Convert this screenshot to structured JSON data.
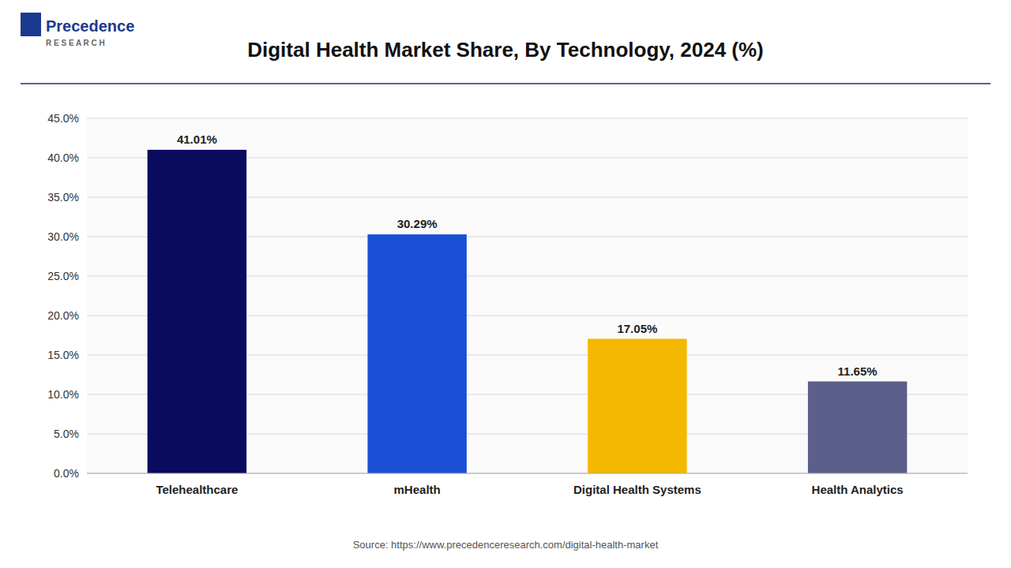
{
  "chart_data": {
    "type": "bar",
    "title": "Digital Health Market Share, By Technology, 2024 (%)",
    "categories": [
      "Telehealthcare",
      "mHealth",
      "Digital Health Systems",
      "Health Analytics"
    ],
    "values": [
      41.01,
      30.29,
      17.05,
      11.65
    ],
    "value_labels": [
      "41.01%",
      "30.29%",
      "17.05%",
      "11.65%"
    ],
    "colors": [
      "#0a0a5e",
      "#1a4fd6",
      "#f5b800",
      "#5b5f8a"
    ],
    "ylim": [
      0,
      45
    ],
    "yticks": [
      {
        "value": 0,
        "label": "0.0%"
      },
      {
        "value": 5,
        "label": "5.0%"
      },
      {
        "value": 10,
        "label": "10.0%"
      },
      {
        "value": 15,
        "label": "15.0%"
      },
      {
        "value": 20,
        "label": "20.0%"
      },
      {
        "value": 25,
        "label": "25.0%"
      },
      {
        "value": 30,
        "label": "30.0%"
      },
      {
        "value": 35,
        "label": "35.0%"
      },
      {
        "value": 40,
        "label": "40.0%"
      },
      {
        "value": 45,
        "label": "45.0%"
      }
    ],
    "grid": true,
    "data_labels": true,
    "annotations": [
      "Source: https://www.precedenceresearch.com/digital-health-market",
      "Precedence",
      "R E S E A R C H"
    ]
  }
}
